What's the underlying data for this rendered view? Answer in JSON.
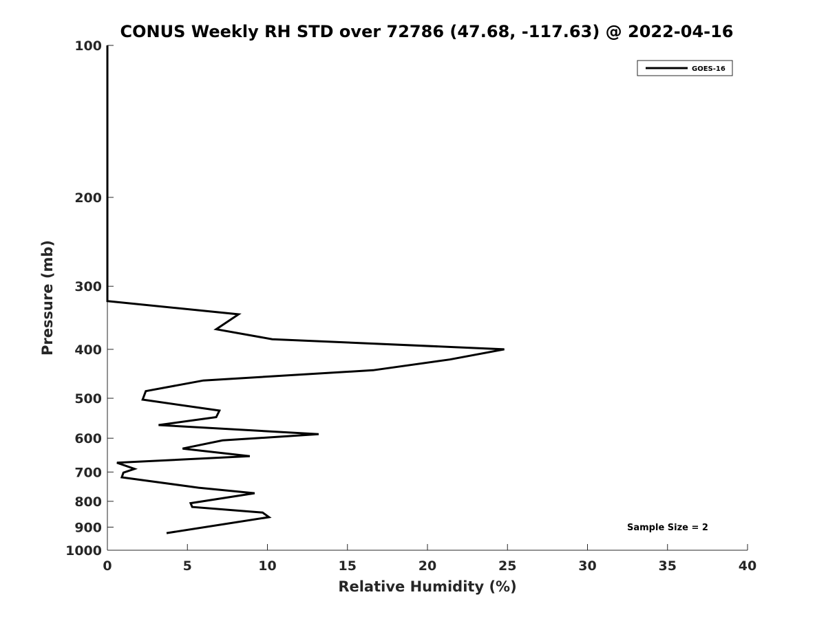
{
  "chart_data": {
    "type": "line",
    "title": "CONUS Weekly RH STD over 72786 (47.68, -117.63) @ 2022-04-16",
    "xlabel": "Relative Humidity (%)",
    "ylabel": "Pressure (mb)",
    "xlim": [
      0,
      40
    ],
    "ylim": [
      100,
      1000
    ],
    "yscale": "log",
    "y_reversed": true,
    "grid": false,
    "legend_position": "top-right",
    "x_ticks": [
      0,
      5,
      10,
      15,
      20,
      25,
      30,
      35,
      40
    ],
    "x_tick_labels": [
      "0",
      "5",
      "10",
      "15",
      "20",
      "25",
      "30",
      "35",
      "40"
    ],
    "y_ticks": [
      100,
      200,
      300,
      400,
      500,
      600,
      700,
      800,
      900,
      1000
    ],
    "y_tick_labels": [
      "100",
      "200",
      "300",
      "400",
      "500",
      "600",
      "700",
      "800",
      "900",
      "1000"
    ],
    "series": [
      {
        "name": "GOES-16",
        "color": "#000000",
        "points": [
          {
            "x": 0,
            "y": 100
          },
          {
            "x": 0,
            "y": 321
          },
          {
            "x": 8.2,
            "y": 341
          },
          {
            "x": 6.8,
            "y": 365
          },
          {
            "x": 10.3,
            "y": 382
          },
          {
            "x": 24.8,
            "y": 400
          },
          {
            "x": 21.4,
            "y": 419
          },
          {
            "x": 16.6,
            "y": 440
          },
          {
            "x": 6.0,
            "y": 461
          },
          {
            "x": 2.4,
            "y": 484
          },
          {
            "x": 2.2,
            "y": 503
          },
          {
            "x": 7.0,
            "y": 529
          },
          {
            "x": 6.8,
            "y": 545
          },
          {
            "x": 3.2,
            "y": 565
          },
          {
            "x": 13.2,
            "y": 589
          },
          {
            "x": 7.2,
            "y": 606
          },
          {
            "x": 4.7,
            "y": 629
          },
          {
            "x": 8.9,
            "y": 651
          },
          {
            "x": 0.6,
            "y": 671
          },
          {
            "x": 1.7,
            "y": 690
          },
          {
            "x": 1.0,
            "y": 702
          },
          {
            "x": 0.9,
            "y": 717
          },
          {
            "x": 5.7,
            "y": 752
          },
          {
            "x": 9.2,
            "y": 771
          },
          {
            "x": 5.2,
            "y": 807
          },
          {
            "x": 5.3,
            "y": 821
          },
          {
            "x": 9.7,
            "y": 842
          },
          {
            "x": 10.1,
            "y": 860
          },
          {
            "x": 3.7,
            "y": 925
          }
        ]
      }
    ],
    "annotations": [
      "Sample Size = 2"
    ]
  }
}
